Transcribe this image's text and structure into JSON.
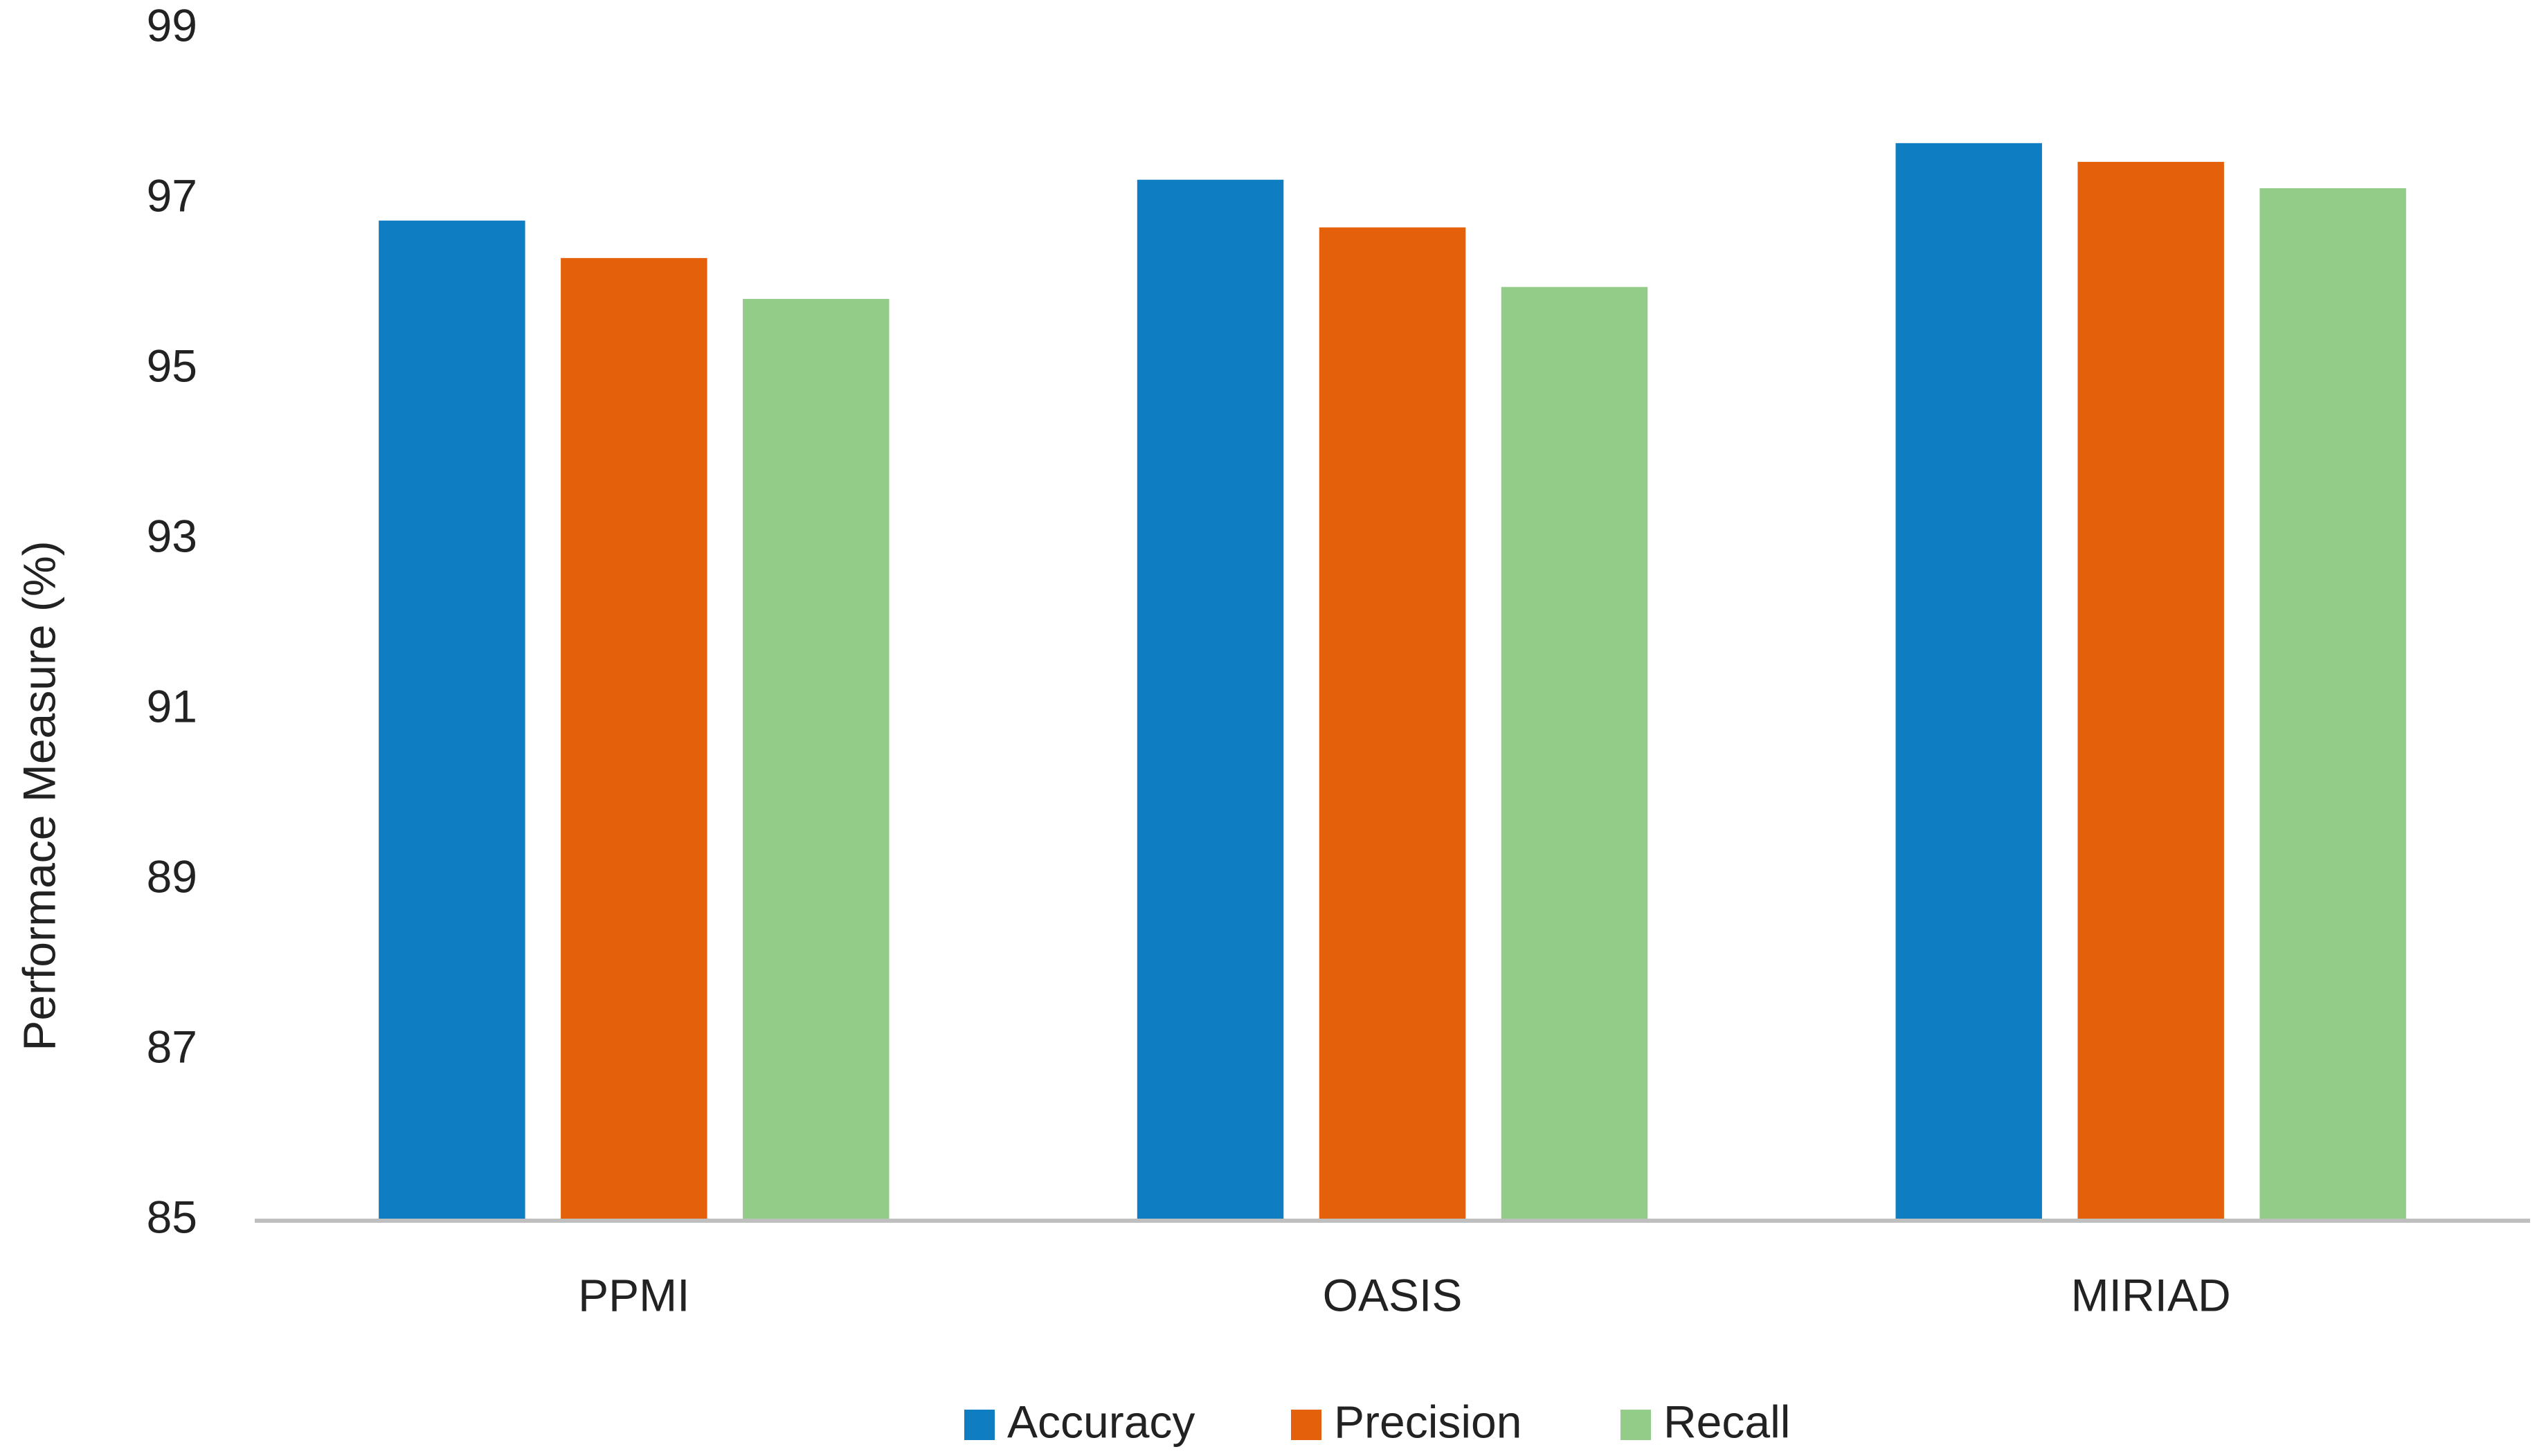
{
  "chart_data": {
    "type": "bar",
    "y_label": "Performace Measure (%)",
    "categories": [
      "PPMI",
      "OASIS",
      "MIRIAD"
    ],
    "series": [
      {
        "name": "Accuracy",
        "color": "#0f7dc2",
        "values": [
          96.75,
          97.23,
          97.66
        ]
      },
      {
        "name": "Precision",
        "color": "#e4600a",
        "values": [
          96.31,
          96.67,
          97.44
        ]
      },
      {
        "name": "Recall",
        "color": "#93cc88",
        "values": [
          95.83,
          95.97,
          97.13
        ]
      }
    ],
    "ylim": [
      85,
      99
    ],
    "yticks": [
      85,
      87,
      89,
      91,
      93,
      95,
      97,
      99
    ],
    "grid": false,
    "legend": "bottom"
  }
}
